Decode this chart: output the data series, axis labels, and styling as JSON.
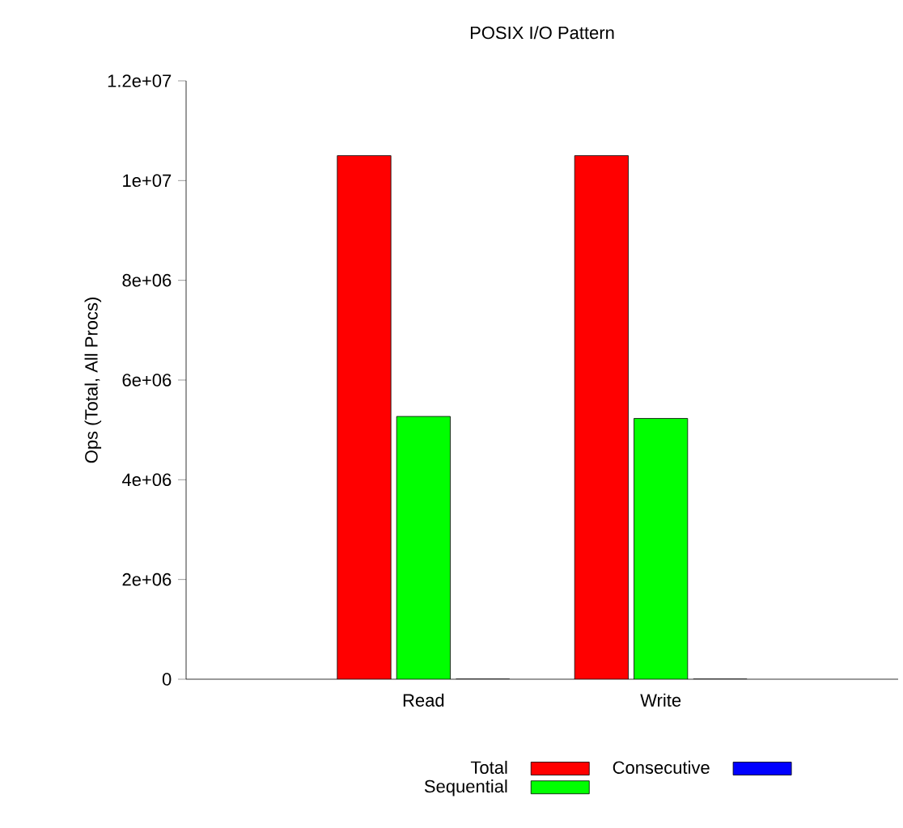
{
  "chart_data": {
    "type": "bar",
    "title": "POSIX I/O Pattern",
    "ylabel": "Ops (Total, All Procs)",
    "categories": [
      "Read",
      "Write"
    ],
    "series": [
      {
        "name": "Total",
        "color": "#ff0000",
        "values": [
          10500000,
          10500000
        ]
      },
      {
        "name": "Sequential",
        "color": "#00ff00",
        "values": [
          5270000,
          5230000
        ]
      },
      {
        "name": "Consecutive",
        "color": "#0000ff",
        "values": [
          0,
          0
        ]
      }
    ],
    "ylim": [
      0,
      12000000
    ],
    "yticks": [
      {
        "value": 0,
        "label": "0"
      },
      {
        "value": 2000000,
        "label": "2e+06"
      },
      {
        "value": 4000000,
        "label": "4e+06"
      },
      {
        "value": 6000000,
        "label": "6e+06"
      },
      {
        "value": 8000000,
        "label": "8e+06"
      },
      {
        "value": 10000000,
        "label": "1e+07"
      },
      {
        "value": 12000000,
        "label": "1.2e+07"
      }
    ],
    "grid": false,
    "legend": "bottom"
  }
}
